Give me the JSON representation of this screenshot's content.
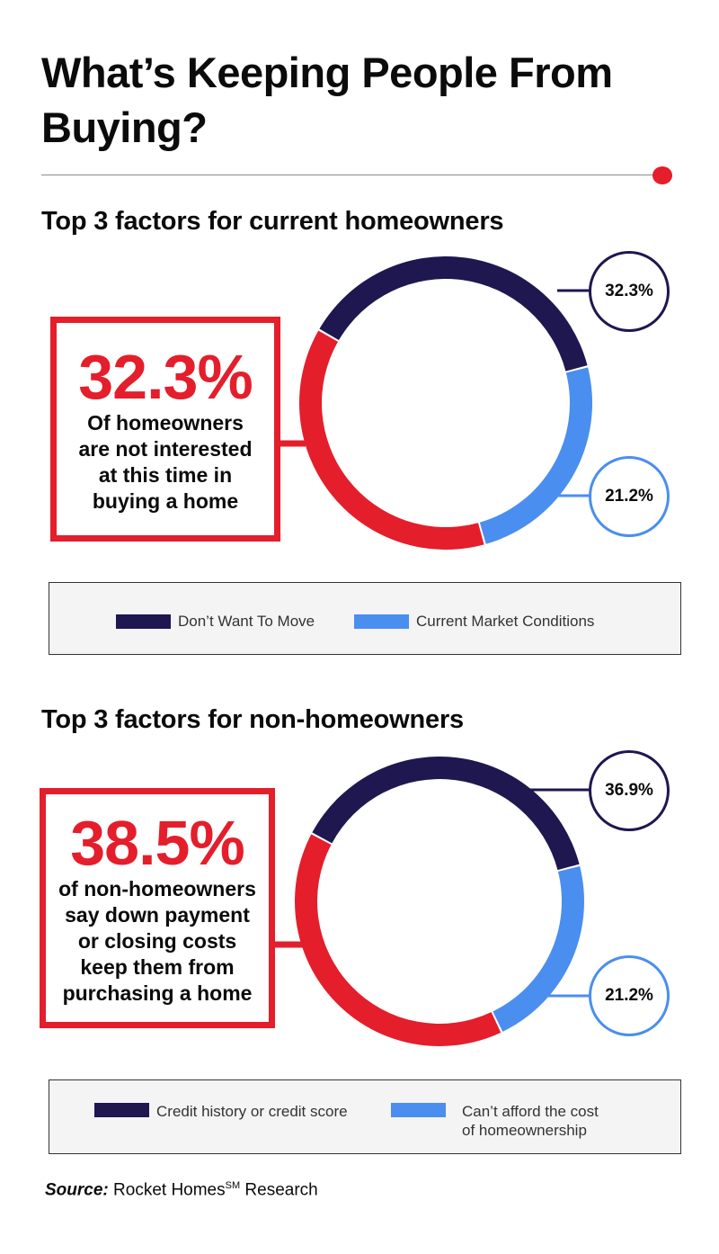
{
  "title": "What’s Keeping People From Buying?",
  "colors": {
    "navy": "#1f1750",
    "blue": "#4a8ef0",
    "red": "#e41e2b"
  },
  "chart_data": [
    {
      "type": "pie",
      "title": "Top 3 factors for current homeowners",
      "slices": [
        {
          "label": "Don’t Want To Move",
          "value": 32.3,
          "value_label": "32.3%",
          "color": "#1f1750"
        },
        {
          "label": "Current Market Conditions",
          "value": 21.2,
          "value_label": "21.2%",
          "color": "#4a8ef0"
        },
        {
          "label": "Of homeowners are not interested at this time in buying a home",
          "value": 32.3,
          "value_label": "32.3%",
          "color": "#e41e2b"
        }
      ],
      "callout": {
        "value": "32.3%",
        "text": "Of homeowners\nare not interested\nat this time in\nbuying a home"
      },
      "legend": [
        "Don’t Want To Move",
        "Current Market Conditions"
      ]
    },
    {
      "type": "pie",
      "title": "Top 3 factors for non-homeowners",
      "slices": [
        {
          "label": "Credit history or credit score",
          "value": 36.9,
          "value_label": "36.9%",
          "color": "#1f1750"
        },
        {
          "label": "Can’t afford the cost of homeownership",
          "value": 21.2,
          "value_label": "21.2%",
          "color": "#4a8ef0"
        },
        {
          "label": "of non-homeowners say down payment or closing costs keep them from purchasing a home",
          "value": 38.5,
          "value_label": "38.5%",
          "color": "#e41e2b"
        }
      ],
      "callout": {
        "value": "38.5%",
        "text": "of non-homeowners\nsay down payment\nor closing costs\nkeep them from\npurchasing a home"
      },
      "legend": [
        "Credit history or credit score",
        "Can’t afford the cost\nof homeownership"
      ]
    }
  ],
  "source": {
    "label": "Source:",
    "text": "Rocket Homes",
    "superscript": "SM",
    "suffix": " Research"
  }
}
